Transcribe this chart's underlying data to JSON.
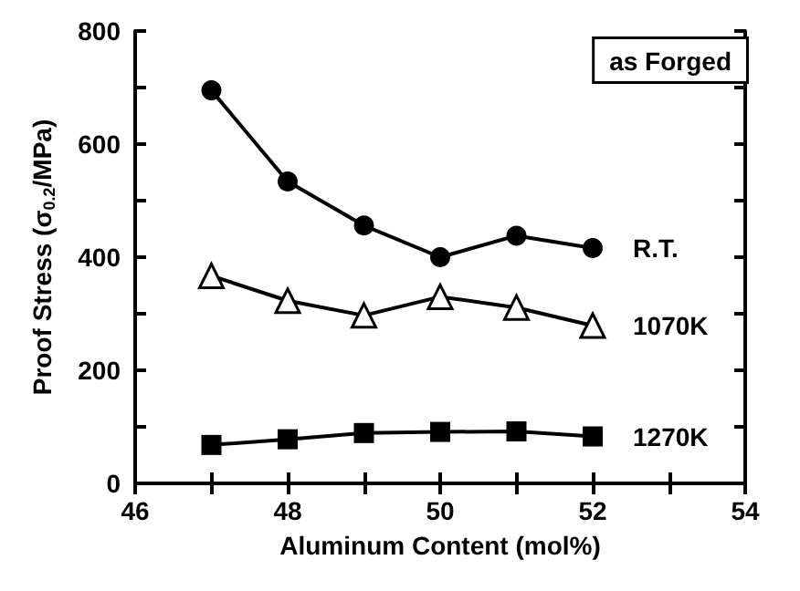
{
  "chart_data": {
    "type": "line",
    "xlabel": "Aluminum Content (mol%)",
    "ylabel": "Proof Stress (σ$_{0.2}$/MPa)",
    "x": [
      47,
      48,
      49,
      50,
      51,
      52
    ],
    "series": [
      {
        "name": "R.T.",
        "color": "#000000",
        "marker": "circle",
        "values": [
          695,
          534,
          456,
          400,
          438,
          416
        ]
      },
      {
        "name": "1070K",
        "color": "#000000",
        "marker": "triangle",
        "values": [
          367,
          323,
          297,
          330,
          311,
          279
        ]
      },
      {
        "name": "1270K",
        "color": "#000000",
        "marker": "square",
        "values": [
          68,
          78,
          89,
          91,
          92,
          83
        ]
      }
    ],
    "xlim": [
      46,
      54
    ],
    "xticks": [
      46,
      {
        "value": 47,
        "label": null
      },
      48,
      {
        "value": 49,
        "label": null
      },
      50,
      {
        "value": 51,
        "label": null
      },
      52,
      {
        "value": 53,
        "label": null
      },
      54
    ],
    "ylim": [
      0,
      800
    ],
    "yticks": [
      0,
      {
        "value": 100,
        "label": null
      },
      200,
      {
        "value": 300,
        "label": null
      },
      400,
      {
        "value": 500,
        "label": null
      },
      600,
      {
        "value": 700,
        "label": null
      },
      800
    ],
    "annotations": [
      "as Forged"
    ],
    "legend": "right",
    "grid": false,
    "line_style": "solid"
  }
}
